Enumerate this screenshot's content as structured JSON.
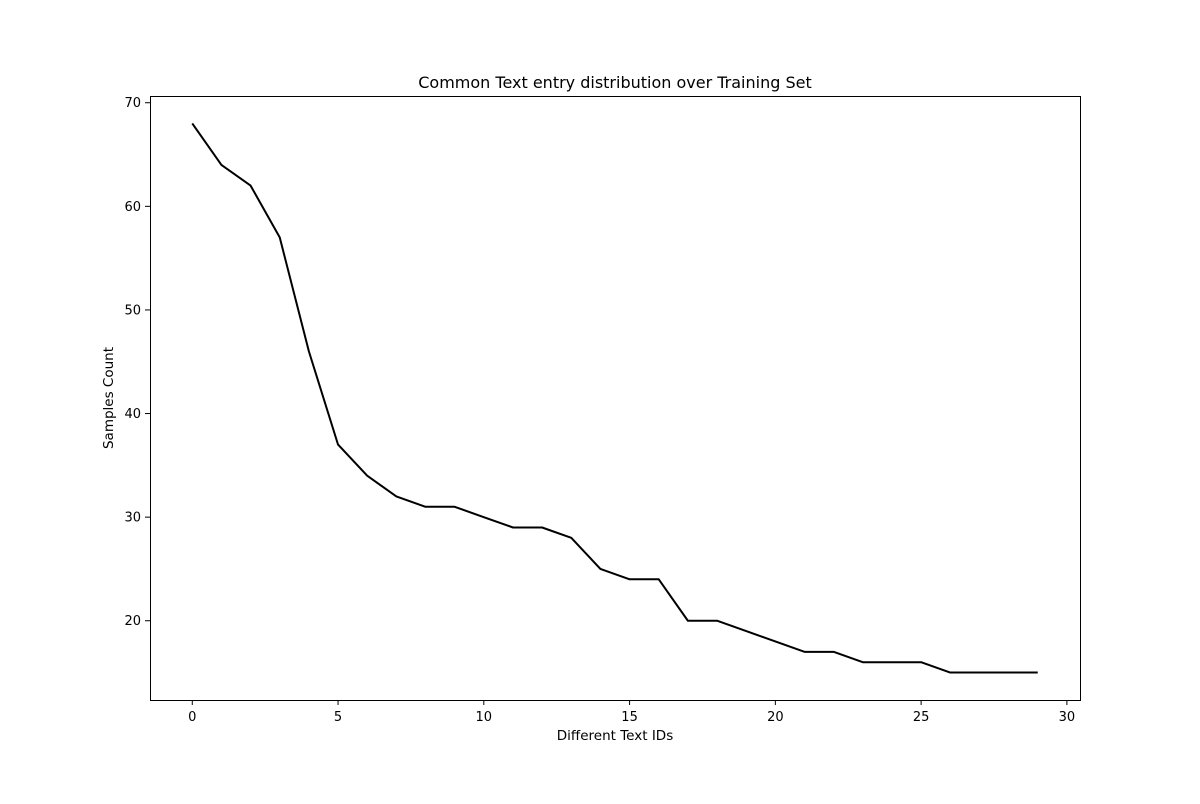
{
  "chart_data": {
    "type": "line",
    "title": "Common Text entry distribution over Training Set",
    "xlabel": "Different Text IDs",
    "ylabel": "Samples Count",
    "xlim": [
      -1.45,
      30.45
    ],
    "ylim": [
      12.35,
      70.65
    ],
    "xticks": [
      0,
      5,
      10,
      15,
      20,
      25,
      30
    ],
    "yticks": [
      20,
      30,
      40,
      50,
      60,
      70
    ],
    "grid": false,
    "legend": "none",
    "line_color": "#000000",
    "series": [
      {
        "x": [
          0,
          1,
          2,
          3,
          4,
          5,
          6,
          7,
          8,
          9,
          10,
          11,
          12,
          13,
          14,
          15,
          16,
          17,
          18,
          19,
          20,
          21,
          22,
          23,
          24,
          25,
          26,
          27,
          28,
          29
        ],
        "values": [
          68,
          64,
          62,
          57,
          46,
          37,
          34,
          32,
          31,
          31,
          30,
          29,
          29,
          28,
          25,
          24,
          24,
          20,
          20,
          19,
          18,
          17,
          17,
          16,
          16,
          16,
          15,
          15,
          15,
          15
        ]
      }
    ]
  }
}
